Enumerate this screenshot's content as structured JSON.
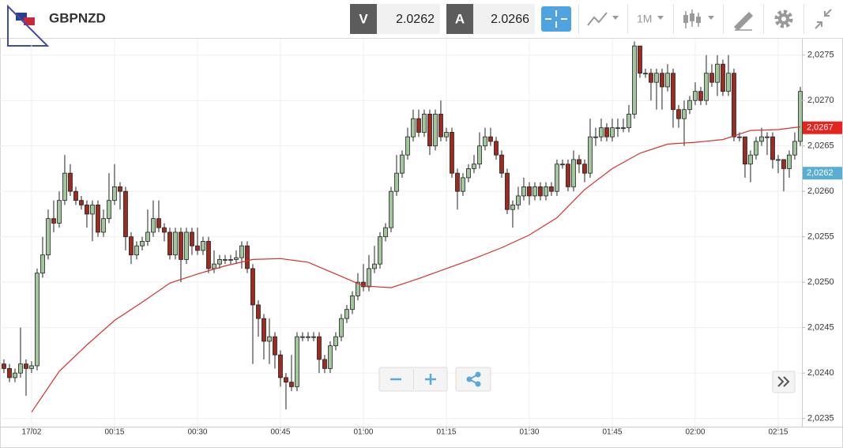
{
  "toolbar": {
    "symbol": "GBPNZD",
    "bid_label": "V",
    "bid": "2.0262",
    "ask_label": "A",
    "ask": "2.0266",
    "timeframe": "1M"
  },
  "chart_data": {
    "type": "candlestick",
    "up_color": "#a3c79c",
    "down_color": "#9e2b1f",
    "ma_color": "#d9302c",
    "grid": true,
    "xlim": [
      -5.71,
      139.29
    ],
    "ylim": [
      2.02341,
      2.02768
    ],
    "xticks": [
      {
        "value": 0,
        "label": "17/02"
      },
      {
        "value": 15,
        "label": "00:15"
      },
      {
        "value": 30,
        "label": "00:30"
      },
      {
        "value": 45,
        "label": "00:45"
      },
      {
        "value": 60,
        "label": "01:00"
      },
      {
        "value": 75,
        "label": "01:15"
      },
      {
        "value": 90,
        "label": "01:30"
      },
      {
        "value": 105,
        "label": "01:45"
      },
      {
        "value": 120,
        "label": "02:00"
      },
      {
        "value": 135,
        "label": "02:15"
      }
    ],
    "yticks": [
      {
        "value": 2.0235,
        "label": "2,0235"
      },
      {
        "value": 2.024,
        "label": "2,0240"
      },
      {
        "value": 2.0245,
        "label": "2,0245"
      },
      {
        "value": 2.025,
        "label": "2,0250"
      },
      {
        "value": 2.0255,
        "label": "2,0255"
      },
      {
        "value": 2.026,
        "label": "2,0260"
      },
      {
        "value": 2.0265,
        "label": "2,0265"
      },
      {
        "value": 2.027,
        "label": "2,0270"
      },
      {
        "value": 2.0275,
        "label": "2,0275"
      }
    ],
    "price_markers": [
      {
        "value": 2.0267,
        "label": "2,0267",
        "color": "#e5231f"
      },
      {
        "value": 2.0262,
        "label": "2,0262",
        "color": "#5aaed6"
      }
    ],
    "x": [
      -5,
      -4,
      -3,
      -2,
      -1,
      0,
      1,
      2,
      3,
      4,
      5,
      6,
      7,
      8,
      9,
      10,
      11,
      12,
      13,
      14,
      15,
      16,
      17,
      18,
      19,
      20,
      21,
      22,
      23,
      24,
      25,
      26,
      27,
      28,
      29,
      30,
      31,
      32,
      33,
      34,
      35,
      36,
      37,
      38,
      39,
      40,
      41,
      42,
      43,
      44,
      45,
      46,
      47,
      48,
      49,
      50,
      51,
      52,
      53,
      54,
      55,
      56,
      57,
      58,
      59,
      60,
      61,
      62,
      63,
      64,
      65,
      66,
      67,
      68,
      69,
      70,
      71,
      72,
      73,
      74,
      75,
      76,
      77,
      78,
      79,
      80,
      81,
      82,
      83,
      84,
      85,
      86,
      87,
      88,
      89,
      90,
      91,
      92,
      93,
      94,
      95,
      96,
      97,
      98,
      99,
      100,
      101,
      102,
      103,
      104,
      105,
      106,
      107,
      108,
      109,
      110,
      111,
      112,
      113,
      114,
      115,
      116,
      117,
      118,
      119,
      120,
      121,
      122,
      123,
      124,
      125,
      126,
      127,
      128,
      129,
      130,
      131,
      132,
      133,
      134,
      135,
      136,
      137,
      138,
      139
    ],
    "open": [
      2.0241,
      2.02405,
      2.02395,
      2.024,
      2.0241,
      2.02405,
      2.02408,
      2.0251,
      2.0253,
      2.0257,
      2.02565,
      2.0259,
      2.0262,
      2.026,
      2.0259,
      2.02585,
      2.02575,
      2.02585,
      2.02555,
      2.0257,
      2.0259,
      2.02605,
      2.026,
      2.0255,
      2.0253,
      2.0254,
      2.02545,
      2.02555,
      2.0257,
      2.0256,
      2.02555,
      2.0253,
      2.02555,
      2.02525,
      2.02555,
      2.0254,
      2.02535,
      2.02545,
      2.02515,
      2.0252,
      2.02525,
      2.02525,
      2.02525,
      2.02527,
      2.0254,
      2.02515,
      2.02475,
      2.0246,
      2.02435,
      2.0244,
      2.0242,
      2.02395,
      2.0239,
      2.02385,
      2.0244,
      2.0244,
      2.0244,
      2.0244,
      2.02415,
      2.02405,
      2.0243,
      2.0244,
      2.0246,
      2.0247,
      2.02485,
      2.025,
      2.02495,
      2.02515,
      2.0252,
      2.0255,
      2.0256,
      2.026,
      2.0262,
      2.0264,
      2.0266,
      2.0268,
      2.02665,
      2.02685,
      2.0265,
      2.02685,
      2.0266,
      2.02665,
      2.0262,
      2.026,
      2.02615,
      2.02625,
      2.0263,
      2.0265,
      2.0266,
      2.02655,
      2.0264,
      2.0262,
      2.0258,
      2.02585,
      2.02595,
      2.02605,
      2.02595,
      2.02605,
      2.02595,
      2.02605,
      2.026,
      2.0263,
      2.0263,
      2.02605,
      2.02635,
      2.0263,
      2.0262,
      2.0266,
      2.0266,
      2.0267,
      2.0266,
      2.0267,
      2.0267,
      2.0267,
      2.02685,
      2.0276,
      2.0273,
      2.0273,
      2.0272,
      2.0273,
      2.02715,
      2.0273,
      2.0269,
      2.0268,
      2.0269,
      2.027,
      2.0271,
      2.027,
      2.0273,
      2.0272,
      2.0274,
      2.0271,
      2.0273,
      2.0266,
      2.0266,
      2.0263,
      2.0264,
      2.02655,
      2.0266,
      2.0266,
      2.02635,
      2.02635,
      2.02625,
      2.0264,
      2.02655
    ],
    "high": [
      2.02415,
      2.0241,
      2.02405,
      2.0245,
      2.02415,
      2.02413,
      2.02515,
      2.0255,
      2.0258,
      2.0259,
      2.026,
      2.0264,
      2.0263,
      2.02605,
      2.02595,
      2.0259,
      2.0259,
      2.0259,
      2.0258,
      2.0262,
      2.0263,
      2.0261,
      2.02605,
      2.02555,
      2.02545,
      2.0255,
      2.0258,
      2.0259,
      2.0259,
      2.02565,
      2.0256,
      2.0256,
      2.0256,
      2.0256,
      2.0256,
      2.0256,
      2.0255,
      2.0255,
      2.02535,
      2.0253,
      2.0253,
      2.0253,
      2.02535,
      2.02545,
      2.02545,
      2.0252,
      2.0248,
      2.02465,
      2.0246,
      2.02445,
      2.02425,
      2.024,
      2.0242,
      2.02445,
      2.02445,
      2.02445,
      2.02445,
      2.02445,
      2.0242,
      2.02435,
      2.02445,
      2.02465,
      2.02475,
      2.0249,
      2.0251,
      2.0252,
      2.0253,
      2.0254,
      2.02555,
      2.02565,
      2.02605,
      2.0264,
      2.02645,
      2.0267,
      2.0269,
      2.0269,
      2.0269,
      2.0269,
      2.0269,
      2.027,
      2.0267,
      2.0267,
      2.02625,
      2.0262,
      2.0263,
      2.0264,
      2.02665,
      2.0267,
      2.0267,
      2.0266,
      2.02645,
      2.02625,
      2.0259,
      2.02605,
      2.02615,
      2.0261,
      2.0261,
      2.0261,
      2.0261,
      2.0261,
      2.02635,
      2.02635,
      2.02635,
      2.02645,
      2.0264,
      2.02635,
      2.0268,
      2.0267,
      2.0268,
      2.02675,
      2.0268,
      2.0268,
      2.0268,
      2.02695,
      2.02765,
      2.0276,
      2.02735,
      2.02735,
      2.02735,
      2.02735,
      2.0274,
      2.02735,
      2.02695,
      2.027,
      2.02705,
      2.0272,
      2.02715,
      2.0275,
      2.0274,
      2.0275,
      2.02745,
      2.0275,
      2.02735,
      2.02665,
      2.0266,
      2.02645,
      2.0266,
      2.0267,
      2.02665,
      2.02665,
      2.0264,
      2.02635,
      2.02645,
      2.02665,
      2.02715
    ],
    "low": [
      2.024,
      2.0239,
      2.0239,
      2.02395,
      2.02375,
      2.024,
      2.02403,
      2.02505,
      2.02525,
      2.02555,
      2.0256,
      2.02585,
      2.02595,
      2.02585,
      2.0258,
      2.0256,
      2.02545,
      2.0255,
      2.0255,
      2.02565,
      2.02585,
      2.0258,
      2.02535,
      2.0252,
      2.02525,
      2.02535,
      2.0254,
      2.0255,
      2.02555,
      2.02545,
      2.02525,
      2.02525,
      2.025,
      2.0252,
      2.0253,
      2.0253,
      2.0253,
      2.0251,
      2.0251,
      2.02515,
      2.0252,
      2.0252,
      2.0252,
      2.02515,
      2.0251,
      2.0241,
      2.0244,
      2.02415,
      2.0241,
      2.02405,
      2.02385,
      2.0236,
      2.0238,
      2.0238,
      2.02435,
      2.02435,
      2.02435,
      2.024,
      2.024,
      2.024,
      2.02425,
      2.02435,
      2.02455,
      2.02465,
      2.0248,
      2.0249,
      2.0249,
      2.0251,
      2.02515,
      2.02545,
      2.02555,
      2.02595,
      2.02615,
      2.02635,
      2.02655,
      2.0266,
      2.0266,
      2.0264,
      2.02645,
      2.02655,
      2.02655,
      2.02615,
      2.0258,
      2.02595,
      2.0261,
      2.0262,
      2.02625,
      2.02645,
      2.0265,
      2.02635,
      2.02615,
      2.02575,
      2.0256,
      2.0258,
      2.0259,
      2.02585,
      2.0259,
      2.0259,
      2.0259,
      2.02595,
      2.02595,
      2.02625,
      2.026,
      2.026,
      2.0262,
      2.0261,
      2.02615,
      2.0265,
      2.02655,
      2.02655,
      2.02655,
      2.0266,
      2.02665,
      2.02665,
      2.0268,
      2.02725,
      2.02725,
      2.027,
      2.0269,
      2.0269,
      2.0271,
      2.0267,
      2.0267,
      2.0265,
      2.02685,
      2.02695,
      2.02695,
      2.02695,
      2.02715,
      2.02705,
      2.02705,
      2.02705,
      2.02655,
      2.02655,
      2.02615,
      2.0261,
      2.02635,
      2.0265,
      2.0264,
      2.02625,
      2.0262,
      2.026,
      2.02615,
      2.02635,
      2.0265
    ],
    "close": [
      2.02405,
      2.02395,
      2.024,
      2.0241,
      2.02405,
      2.02408,
      2.0251,
      2.0253,
      2.0257,
      2.02565,
      2.0259,
      2.0262,
      2.026,
      2.0259,
      2.02585,
      2.02575,
      2.02585,
      2.02555,
      2.0257,
      2.0259,
      2.02605,
      2.026,
      2.0255,
      2.0253,
      2.0254,
      2.02545,
      2.02555,
      2.0257,
      2.0256,
      2.02555,
      2.0253,
      2.02555,
      2.02525,
      2.02555,
      2.0254,
      2.02535,
      2.02545,
      2.02515,
      2.0252,
      2.02525,
      2.02525,
      2.02525,
      2.02527,
      2.0254,
      2.02515,
      2.02475,
      2.0246,
      2.02435,
      2.0244,
      2.0242,
      2.02395,
      2.0239,
      2.02385,
      2.0244,
      2.0244,
      2.0244,
      2.0244,
      2.02415,
      2.02405,
      2.0243,
      2.0244,
      2.0246,
      2.0247,
      2.02485,
      2.025,
      2.02495,
      2.02515,
      2.0252,
      2.0255,
      2.0256,
      2.026,
      2.0262,
      2.0264,
      2.0266,
      2.0268,
      2.02665,
      2.02685,
      2.0265,
      2.02685,
      2.0266,
      2.02665,
      2.0262,
      2.026,
      2.02615,
      2.02625,
      2.0263,
      2.0265,
      2.0266,
      2.02655,
      2.0264,
      2.0262,
      2.0258,
      2.02585,
      2.02595,
      2.02605,
      2.02595,
      2.02605,
      2.02595,
      2.02605,
      2.026,
      2.0263,
      2.0263,
      2.02605,
      2.02635,
      2.0263,
      2.0262,
      2.0266,
      2.0266,
      2.0267,
      2.0266,
      2.0267,
      2.0267,
      2.0267,
      2.02685,
      2.0276,
      2.0273,
      2.0273,
      2.0272,
      2.0273,
      2.02715,
      2.0273,
      2.0269,
      2.0268,
      2.0269,
      2.027,
      2.0271,
      2.027,
      2.0273,
      2.0272,
      2.0274,
      2.0271,
      2.0273,
      2.0266,
      2.0266,
      2.0263,
      2.0264,
      2.02655,
      2.0266,
      2.0266,
      2.02635,
      2.02635,
      2.02625,
      2.0264,
      2.02655,
      2.0271
    ],
    "ma": {
      "x": [
        0,
        5,
        10,
        15,
        20,
        25,
        30,
        35,
        40,
        45,
        50,
        55,
        60,
        65,
        70,
        75,
        80,
        85,
        90,
        95,
        100,
        105,
        110,
        115,
        120,
        125,
        130,
        135,
        139
      ],
      "values": [
        2.02357,
        2.02402,
        2.02431,
        2.02458,
        2.02478,
        2.02499,
        2.02509,
        2.02518,
        2.02525,
        2.02526,
        2.02522,
        2.02509,
        2.02496,
        2.02494,
        2.02504,
        2.02515,
        2.02526,
        2.02538,
        2.02552,
        2.02571,
        2.02602,
        2.02625,
        2.02642,
        2.02652,
        2.02654,
        2.02657,
        2.02667,
        2.02668,
        2.02671
      ]
    }
  }
}
